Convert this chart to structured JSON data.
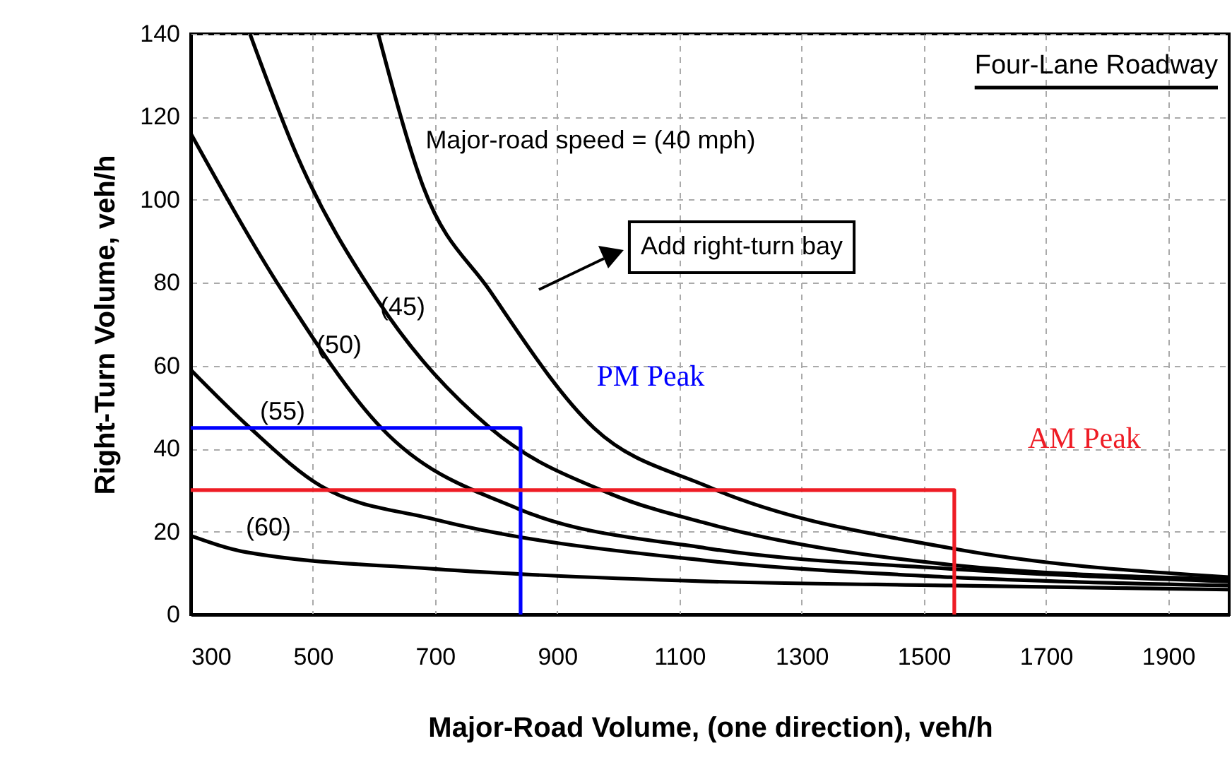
{
  "chart_data": {
    "type": "line",
    "xlabel": "Major-Road Volume, (one direction), veh/h",
    "ylabel": "Right-Turn Volume, veh/h",
    "xlim": [
      300,
      2000
    ],
    "xticks": [
      300,
      500,
      700,
      900,
      1100,
      1300,
      1500,
      1700,
      1900
    ],
    "ylim": [
      0,
      140
    ],
    "yticks": [
      0,
      20,
      40,
      60,
      80,
      100,
      120,
      140
    ],
    "grid": true,
    "legend": false,
    "marker": "none",
    "series": [
      {
        "name": "Major-road speed = (40 mph)",
        "color": "#000000",
        "x": [
          607,
          681,
          790,
          960,
          1144,
          1544,
          2000
        ],
        "values": [
          140,
          103,
          78,
          45,
          31,
          16,
          9
        ]
      },
      {
        "name": "(45)",
        "color": "#000000",
        "x": [
          397,
          473,
          605,
          790,
          989,
          1144,
          1544,
          2000
        ],
        "values": [
          140,
          111,
          76,
          45,
          29,
          22,
          12,
          8.5
        ]
      },
      {
        "name": "(50)",
        "color": "#000000",
        "x": [
          300,
          450,
          612,
          836,
          1144,
          1544,
          2000
        ],
        "values": [
          116,
          78,
          45,
          25.5,
          16,
          11,
          8
        ]
      },
      {
        "name": "(55)",
        "color": "#000000",
        "x": [
          300,
          397,
          513,
          698,
          1144,
          1544,
          2000
        ],
        "values": [
          59,
          45,
          31,
          23,
          13,
          9,
          7
        ]
      },
      {
        "name": "(60)",
        "color": "#000000",
        "x": [
          300,
          392,
          698,
          1144,
          1544,
          2000
        ],
        "values": [
          19,
          15,
          11,
          8,
          7,
          6
        ]
      },
      {
        "name": "PM Peak",
        "color": "#0000ff",
        "x": [
          300,
          840,
          840
        ],
        "values": [
          45,
          45,
          0
        ]
      },
      {
        "name": "AM Peak",
        "color": "#ee1c25",
        "x": [
          300,
          1550,
          1550
        ],
        "values": [
          30,
          30,
          0
        ]
      }
    ],
    "annotations": [
      "Four-Lane Roadway",
      "Add right-turn bay"
    ]
  }
}
